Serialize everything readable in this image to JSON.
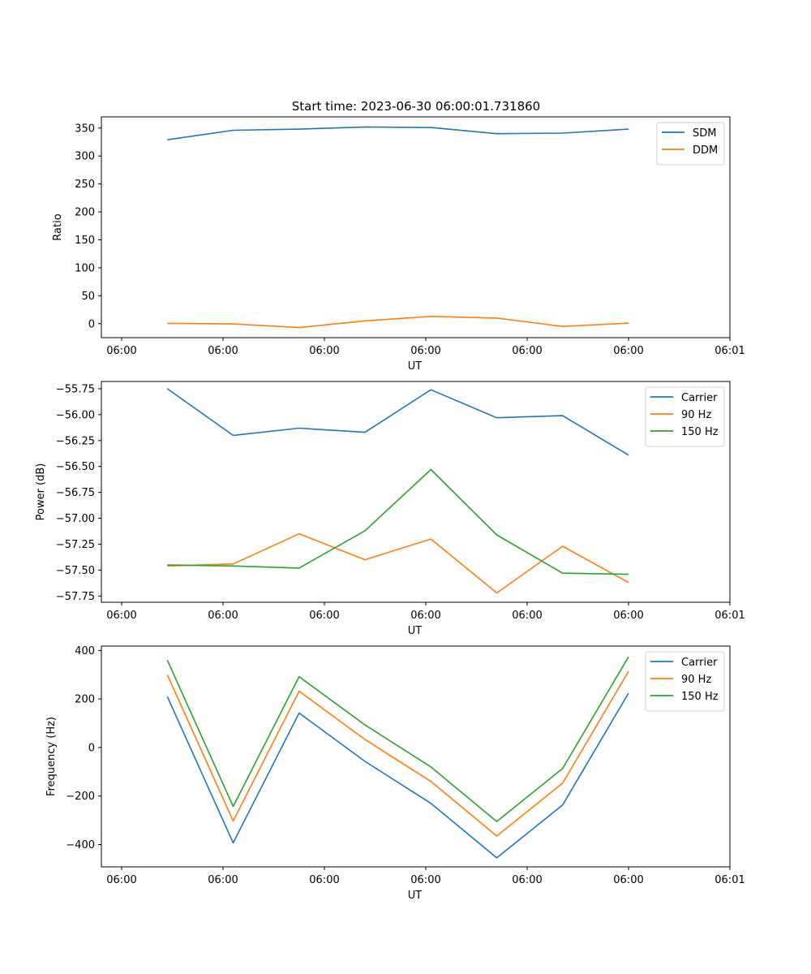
{
  "title": "Start time: 2023-06-30 06:00:01.731860",
  "colors": {
    "carrier": "#1f77b4",
    "ddm": "#ff7f0e",
    "hz150": "#2ca02c",
    "axis": "#000000"
  },
  "chart_data": [
    {
      "type": "line",
      "title": "Start time: 2023-06-30 06:00:01.731860",
      "xlabel": "UT",
      "ylabel": "Ratio",
      "xticks": [
        "06:00",
        "06:00",
        "06:00",
        "06:00",
        "06:00",
        "06:00",
        "06:01"
      ],
      "x": [
        0.45,
        1.1,
        1.75,
        2.4,
        3.05,
        3.7,
        4.35,
        5.0
      ],
      "xlim": [
        -0.2,
        6.0
      ],
      "ylim": [
        -25,
        370
      ],
      "yticks": [
        0,
        50,
        100,
        150,
        200,
        250,
        300,
        350
      ],
      "ytick_labels": [
        "0",
        "50",
        "100",
        "150",
        "200",
        "250",
        "300",
        "350"
      ],
      "legend": "top-right",
      "series": [
        {
          "name": "SDM",
          "color": "#1f77b4",
          "values": [
            329,
            346,
            348,
            352,
            351,
            340,
            341,
            348
          ]
        },
        {
          "name": "DDM",
          "color": "#ff7f0e",
          "values": [
            0.5,
            -0.5,
            -7,
            5,
            13,
            10,
            -5,
            1
          ]
        }
      ]
    },
    {
      "type": "line",
      "xlabel": "UT",
      "ylabel": "Power (dB)",
      "xticks": [
        "06:00",
        "06:00",
        "06:00",
        "06:00",
        "06:00",
        "06:00",
        "06:01"
      ],
      "x": [
        0.45,
        1.1,
        1.75,
        2.4,
        3.05,
        3.7,
        4.35,
        5.0
      ],
      "xlim": [
        -0.2,
        6.0
      ],
      "ylim": [
        -57.81,
        -55.68
      ],
      "yticks": [
        -55.75,
        -56.0,
        -56.25,
        -56.5,
        -56.75,
        -57.0,
        -57.25,
        -57.5,
        -57.75
      ],
      "ytick_labels": [
        "−55.75",
        "−56.00",
        "−56.25",
        "−56.50",
        "−56.75",
        "−57.00",
        "−57.25",
        "−57.50",
        "−57.75"
      ],
      "legend": "top-right",
      "series": [
        {
          "name": "Carrier",
          "color": "#1f77b4",
          "values": [
            -55.75,
            -56.2,
            -56.13,
            -56.17,
            -55.76,
            -56.03,
            -56.01,
            -56.39
          ]
        },
        {
          "name": "90 Hz",
          "color": "#ff7f0e",
          "values": [
            -57.46,
            -57.44,
            -57.15,
            -57.4,
            -57.2,
            -57.72,
            -57.27,
            -57.62
          ]
        },
        {
          "name": "150 Hz",
          "color": "#2ca02c",
          "values": [
            -57.45,
            -57.46,
            -57.48,
            -57.12,
            -56.53,
            -57.16,
            -57.53,
            -57.54
          ]
        }
      ]
    },
    {
      "type": "line",
      "xlabel": "UT",
      "ylabel": "Frequency (Hz)",
      "xticks": [
        "06:00",
        "06:00",
        "06:00",
        "06:00",
        "06:00",
        "06:00",
        "06:01"
      ],
      "x": [
        0.45,
        1.1,
        1.75,
        2.4,
        3.05,
        3.7,
        4.35,
        5.0
      ],
      "xlim": [
        -0.2,
        6.0
      ],
      "ylim": [
        -492,
        418
      ],
      "yticks": [
        400,
        200,
        0,
        -200,
        -400
      ],
      "ytick_labels": [
        "400",
        "200",
        "0",
        "−200",
        "−400"
      ],
      "legend": "top-right",
      "series": [
        {
          "name": "Carrier",
          "color": "#1f77b4",
          "values": [
            210,
            -393,
            142,
            -57,
            -230,
            -455,
            -237,
            224
          ]
        },
        {
          "name": "90 Hz",
          "color": "#ff7f0e",
          "values": [
            300,
            -303,
            232,
            33,
            -140,
            -365,
            -147,
            314
          ]
        },
        {
          "name": "150 Hz",
          "color": "#2ca02c",
          "values": [
            360,
            -243,
            292,
            93,
            -80,
            -305,
            -87,
            374
          ]
        }
      ]
    }
  ]
}
